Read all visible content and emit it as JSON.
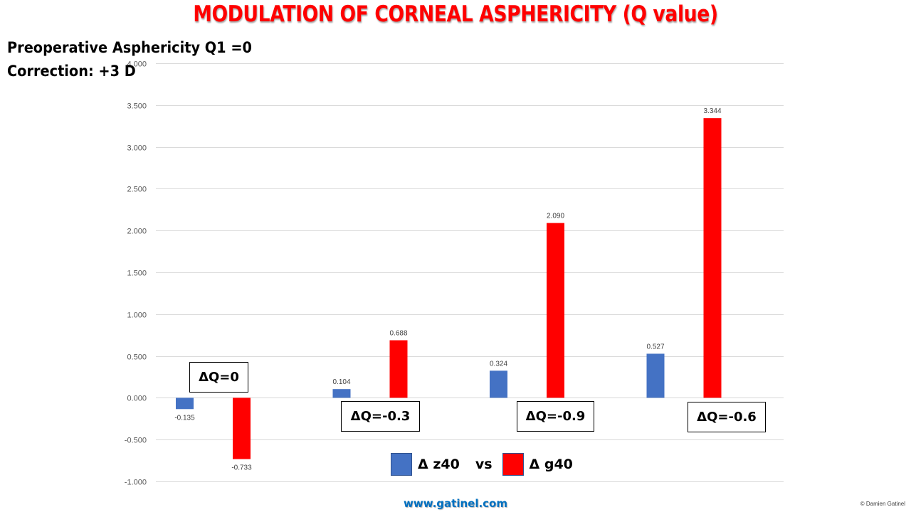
{
  "slide": {
    "title": "MODULATION  OF CORNEAL ASPHERICITY (Q value)",
    "subtitle_line1": "Preoperative Asphericity Q1 =0",
    "subtitle_line2": "Correction: +3 D",
    "footer_url": "www.gatinel.com",
    "copyright": "© Damien Gatinel"
  },
  "legend": {
    "items": [
      {
        "label": "Δ z40",
        "color": "#4472c4"
      },
      {
        "label": "Δ g40",
        "color": "#ff0000"
      }
    ],
    "separator": "vs"
  },
  "annotations": [
    {
      "text": "ΔQ=0",
      "group": 0
    },
    {
      "text": "ΔQ=-0.3",
      "group": 1
    },
    {
      "text": "ΔQ=-0.9",
      "group": 2
    },
    {
      "text": "ΔQ=-0.6",
      "group": 3
    }
  ],
  "chart_data": {
    "type": "bar",
    "title": "MODULATION OF CORNEAL ASPHERICITY (Q value)",
    "xlabel": "",
    "ylabel": "",
    "categories": [
      "ΔQ=0",
      "ΔQ=-0.3",
      "ΔQ=-0.9",
      "ΔQ=-0.6"
    ],
    "series": [
      {
        "name": "Δ z40",
        "color": "#4472c4",
        "values": [
          -0.135,
          0.104,
          0.324,
          0.527
        ],
        "labels": [
          "-0.135",
          "0.104",
          "0.324",
          "0.527"
        ]
      },
      {
        "name": "Δ g40",
        "color": "#ff0000",
        "values": [
          -0.733,
          0.688,
          2.09,
          3.344
        ],
        "labels": [
          "-0.733",
          "0.688",
          "2.090",
          "3.344"
        ]
      }
    ],
    "ylim": [
      -1.0,
      4.0
    ],
    "yticks": [
      4.0,
      3.5,
      3.0,
      2.5,
      2.0,
      1.5,
      1.0,
      0.5,
      0.0,
      -0.5,
      -1.0
    ],
    "ytick_labels": [
      "4.000",
      "3.500",
      "3.000",
      "2.500",
      "2.000",
      "1.500",
      "1.000",
      "0.500",
      "0.000",
      "-0.500",
      "-1.000"
    ],
    "grid": true,
    "legend_position": "bottom-center"
  }
}
